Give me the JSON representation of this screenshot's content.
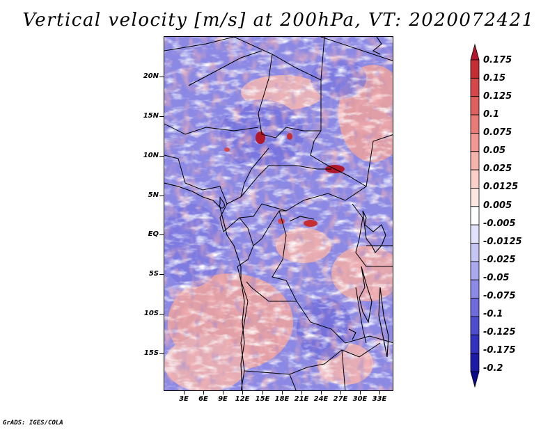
{
  "title": "Vertical velocity [m/s] at 200hPa, VT: 2020072421",
  "credit": "GrADS: IGES/COLA",
  "map": {
    "lat_labels": [
      "20N",
      "15N",
      "10N",
      "5N",
      "EQ",
      "5S",
      "10S",
      "15S"
    ],
    "lon_labels": [
      "3E",
      "6E",
      "9E",
      "12E",
      "15E",
      "18E",
      "21E",
      "24E",
      "27E",
      "30E",
      "33E"
    ]
  },
  "colorbar": {
    "labels": [
      "0.175",
      "0.15",
      "0.125",
      "0.1",
      "0.075",
      "0.05",
      "0.025",
      "0.0125",
      "0.005",
      "-0.005",
      "-0.0125",
      "-0.025",
      "-0.05",
      "-0.075",
      "-0.1",
      "-0.125",
      "-0.175",
      "-0.2"
    ],
    "colors": [
      "#b2182b",
      "#c52f34",
      "#d6474a",
      "#e0605f",
      "#ea7c78",
      "#f19893",
      "#f6b3ac",
      "#fad0c9",
      "#fde7e3",
      "#ffffff",
      "#e2e2fb",
      "#c6c6f5",
      "#aaa9ef",
      "#8c8ae6",
      "#6e6cdc",
      "#4f4dcf",
      "#3331bf",
      "#1c1aa6",
      "#0c0a8a"
    ]
  }
}
